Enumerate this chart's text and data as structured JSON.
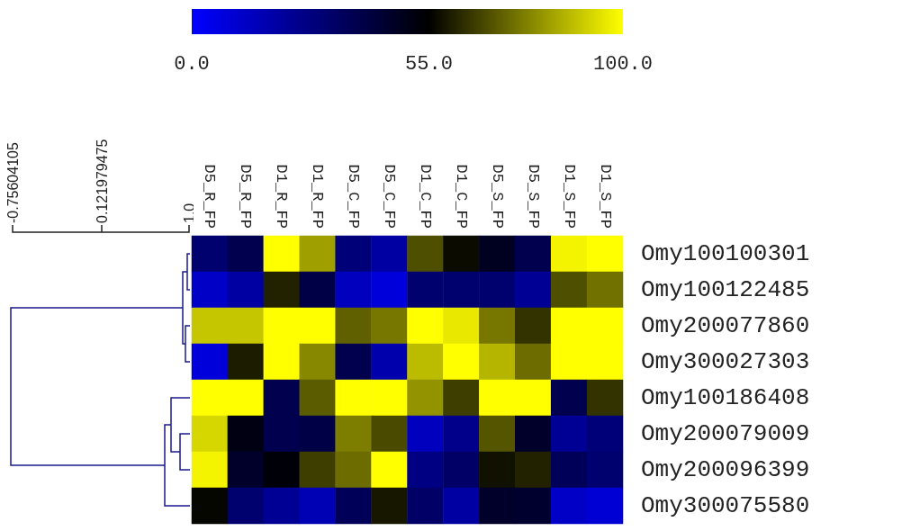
{
  "chart_data": {
    "type": "heatmap",
    "categories": [
      "D5_R_FP",
      "D5_R_FP",
      "D1_R_FP",
      "D1_R_FP",
      "D5_C_FP",
      "D5_C_FP",
      "D1_C_FP",
      "D1_C_FP",
      "D5_S_FP",
      "D5_S_FP",
      "D1_S_FP",
      "D1_S_FP"
    ],
    "y_categories": [
      "Omy100100301",
      "Omy100122485",
      "Omy200077860",
      "Omy300027303",
      "Omy100186408",
      "Omy200079009",
      "Omy200096399",
      "Omy300075580"
    ],
    "cells": [
      [
        31,
        38,
        100,
        83,
        29,
        20,
        69,
        57,
        48,
        38,
        98,
        100
      ],
      [
        12,
        20,
        61,
        40,
        14,
        8,
        31,
        31,
        31,
        23,
        69,
        75
      ],
      [
        90,
        90,
        100,
        100,
        72,
        76,
        100,
        96,
        76,
        64,
        100,
        100
      ],
      [
        8,
        60,
        100,
        79,
        38,
        18,
        88,
        100,
        87,
        74,
        100,
        100
      ],
      [
        100,
        100,
        38,
        71,
        100,
        100,
        81,
        66,
        100,
        100,
        38,
        64
      ],
      [
        93,
        51,
        38,
        40,
        77,
        68,
        14,
        25,
        70,
        46,
        23,
        29
      ],
      [
        98,
        46,
        53,
        66,
        74,
        100,
        27,
        33,
        58,
        61,
        36,
        31
      ],
      [
        56,
        31,
        23,
        16,
        36,
        59,
        33,
        20,
        46,
        45,
        12,
        9
      ]
    ],
    "clim": [
      0,
      100
    ],
    "cticks": [
      {
        "value": 0,
        "label": "0.0"
      },
      {
        "value": 55,
        "label": "55.0"
      },
      {
        "value": 100,
        "label": "100.0"
      }
    ],
    "annotations": [
      "-0.75604105",
      "0.121979475",
      "1.0"
    ]
  }
}
